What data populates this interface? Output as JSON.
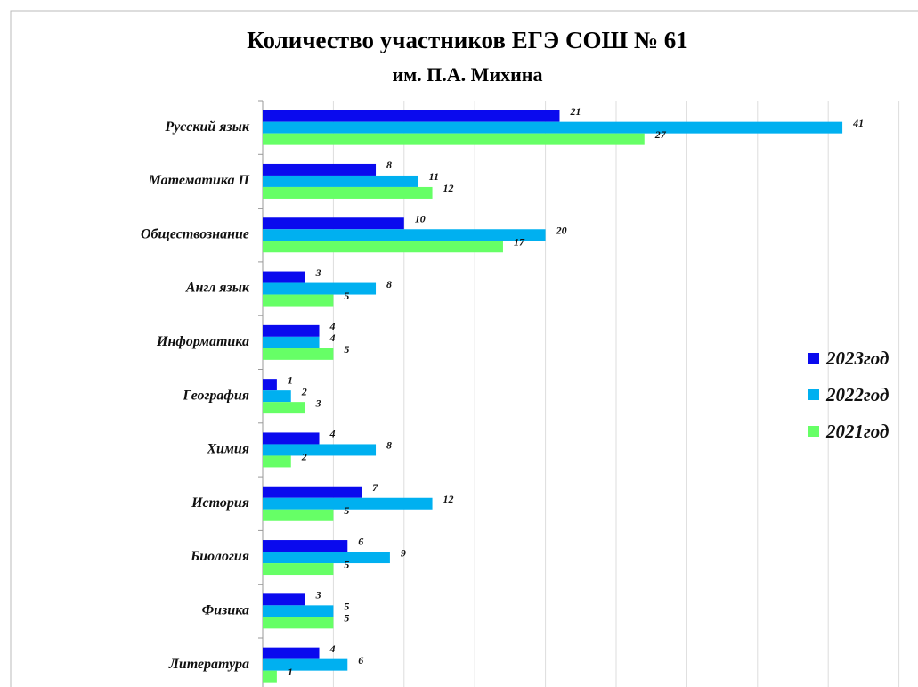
{
  "chart_data": {
    "type": "bar",
    "orientation": "horizontal",
    "title": "Количество участников ЕГЭ СОШ № 61",
    "subtitle": "им. П.А. Михина",
    "categories": [
      "Русский язык",
      "Математика П",
      "Обществознание",
      "Англ язык",
      "Информатика",
      "География",
      "Химия",
      "История",
      "Биология",
      "Физика",
      "Литература"
    ],
    "series": [
      {
        "name": "2023год",
        "color": "#0a0aee",
        "values": [
          21,
          8,
          10,
          3,
          4,
          1,
          4,
          7,
          6,
          3,
          4
        ]
      },
      {
        "name": "2022год",
        "color": "#00b0f0",
        "values": [
          41,
          11,
          20,
          8,
          4,
          2,
          8,
          12,
          9,
          5,
          6
        ]
      },
      {
        "name": "2021год",
        "color": "#66ff66",
        "values": [
          27,
          12,
          17,
          5,
          5,
          3,
          2,
          5,
          5,
          5,
          1
        ]
      }
    ],
    "xlim": [
      0,
      45
    ],
    "xticks": [
      0,
      5,
      10,
      15,
      20,
      25,
      30,
      35,
      40,
      45
    ],
    "grid": true,
    "legend": "right"
  }
}
